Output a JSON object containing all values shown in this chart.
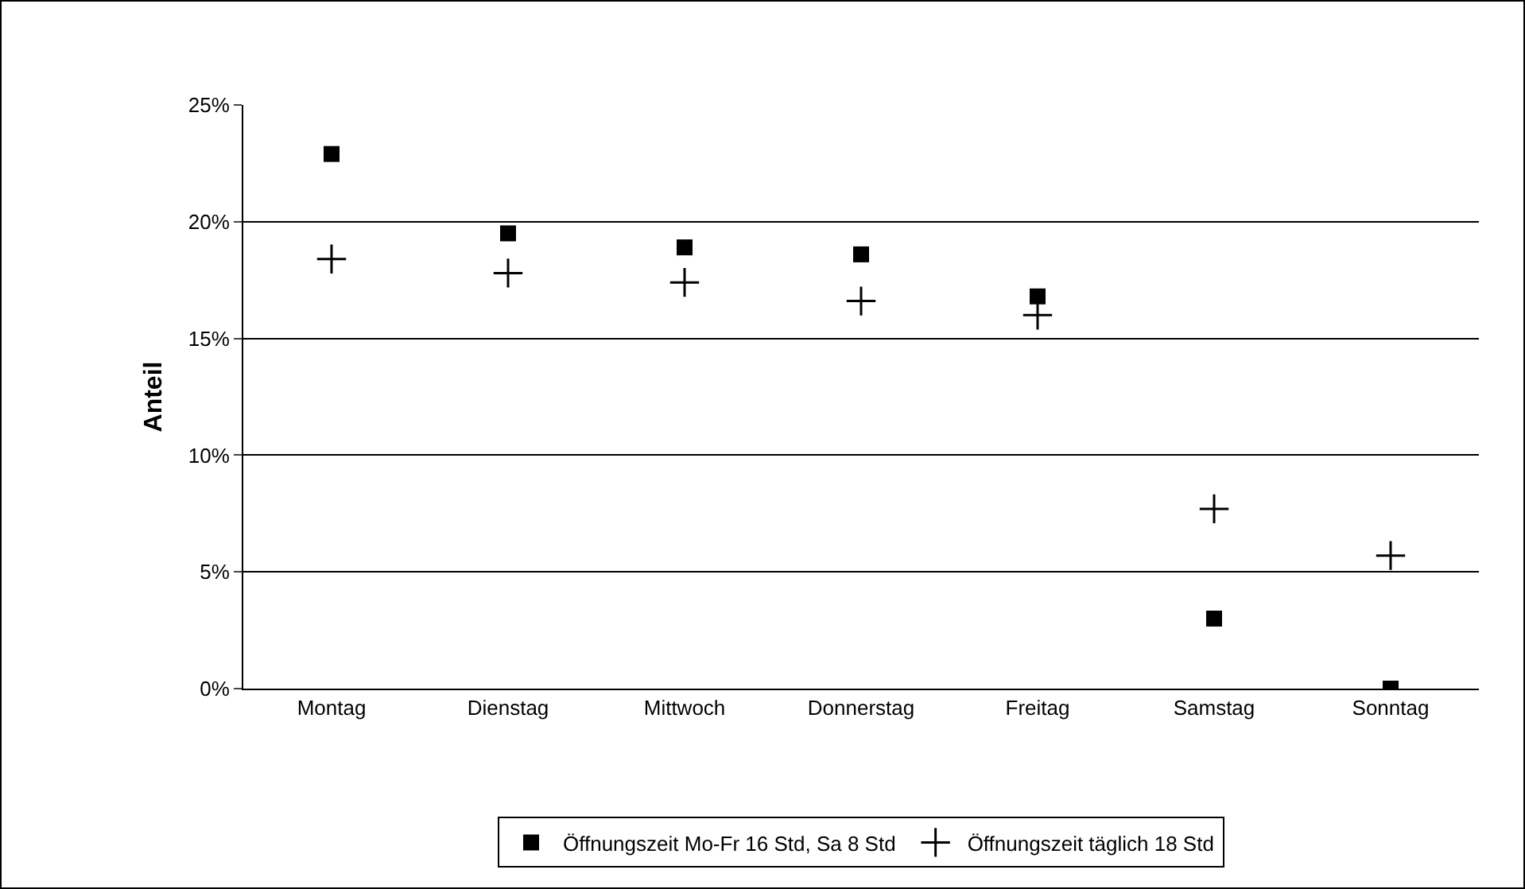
{
  "chart_data": {
    "type": "scatter",
    "ylabel": "Anteil",
    "categories": [
      "Montag",
      "Dienstag",
      "Mittwoch",
      "Donnerstag",
      "Freitag",
      "Samstag",
      "Sonntag"
    ],
    "series": [
      {
        "name": "Öffnungszeit Mo-Fr 16 Std, Sa 8 Std",
        "color": "#000000",
        "marker": "square",
        "values": [
          22.9,
          19.5,
          18.9,
          18.6,
          16.8,
          3.0,
          0.0
        ]
      },
      {
        "name": "Öffnungszeit täglich 18 Std",
        "color": "#000000",
        "marker": "cross",
        "values": [
          18.4,
          17.8,
          17.4,
          16.6,
          16.0,
          7.7,
          5.7
        ]
      }
    ],
    "ylim": [
      0,
      25
    ],
    "yticks": [
      {
        "value": 0,
        "label": "0%"
      },
      {
        "value": 5,
        "label": "5%"
      },
      {
        "value": 10,
        "label": "10%"
      },
      {
        "value": 15,
        "label": "15%"
      },
      {
        "value": 20,
        "label": "20%"
      },
      {
        "value": 25,
        "label": "25%"
      }
    ],
    "grid": "y",
    "legend": "bottom"
  }
}
